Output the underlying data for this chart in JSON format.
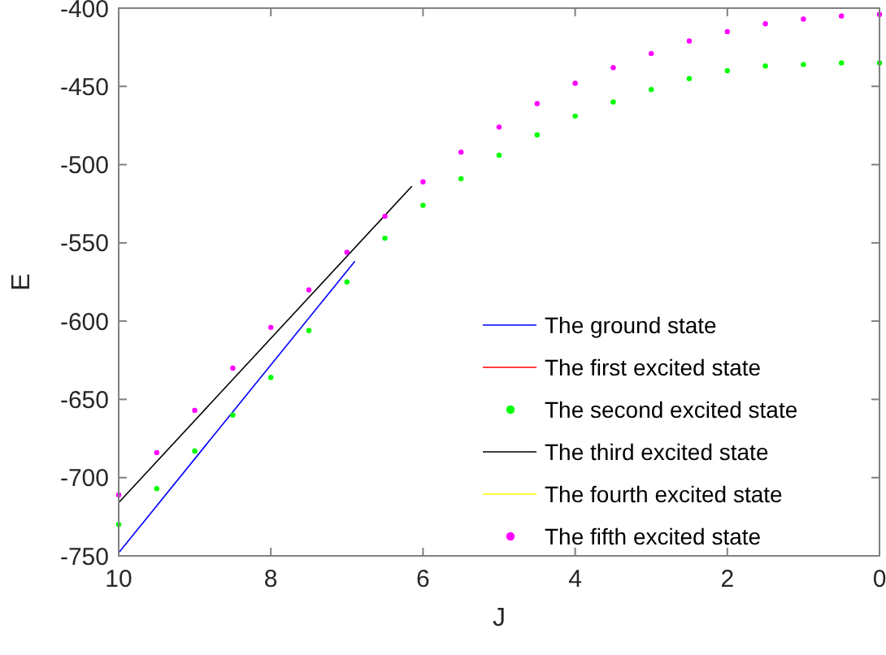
{
  "chart_data": {
    "type": "line",
    "xlabel": "J",
    "ylabel": "E",
    "xlim": [
      10,
      0
    ],
    "xticks": [
      10,
      8,
      6,
      4,
      2,
      0
    ],
    "ylim": [
      -750,
      -400
    ],
    "yticks": [
      -750,
      -700,
      -650,
      -600,
      -550,
      -500,
      -450,
      -400
    ],
    "grid": false,
    "legend": "bottom right",
    "series": [
      {
        "name": "The ground state",
        "color": "#0000ff",
        "x": [
          10,
          6.9
        ],
        "values": [
          -748,
          -562
        ]
      },
      {
        "name": "The first excited state",
        "color": "#ff0000"
      },
      {
        "name": "The second excited state",
        "type": "scatter",
        "marker": "circle",
        "color": "#00ff00",
        "x": [
          10,
          9.5,
          9,
          8.5,
          8,
          7.5,
          7,
          6.5,
          6,
          5.5,
          5,
          4.5,
          4,
          3.5,
          3,
          2.5,
          2,
          1.5,
          1,
          0.5,
          0
        ],
        "values": [
          -730,
          -707,
          -683,
          -660,
          -636,
          -606,
          -575,
          -547,
          -526,
          -509,
          -494,
          -481,
          -469,
          -460,
          -452,
          -445,
          -440,
          -437,
          -436,
          -435,
          -435
        ]
      },
      {
        "name": "The third excited state",
        "color": "#000000",
        "x": [
          10,
          6.15
        ],
        "values": [
          -716,
          -514
        ]
      },
      {
        "name": "The fourth excited state",
        "color": "#ffff00"
      },
      {
        "name": "The fifth excited state",
        "type": "scatter",
        "marker": "circle",
        "color": "#ff00ff",
        "x": [
          10,
          9.5,
          9,
          8.5,
          8,
          7.5,
          7,
          6.5,
          6,
          5.5,
          5,
          4.5,
          4,
          3.5,
          3,
          2.5,
          2,
          1.5,
          1,
          0.5,
          0
        ],
        "values": [
          -711,
          -684,
          -657,
          -630,
          -604,
          -580,
          -556,
          -533,
          -511,
          -492,
          -476,
          -461,
          -448,
          -438,
          -429,
          -421,
          -415,
          -410,
          -407,
          -405,
          -404
        ]
      }
    ]
  }
}
